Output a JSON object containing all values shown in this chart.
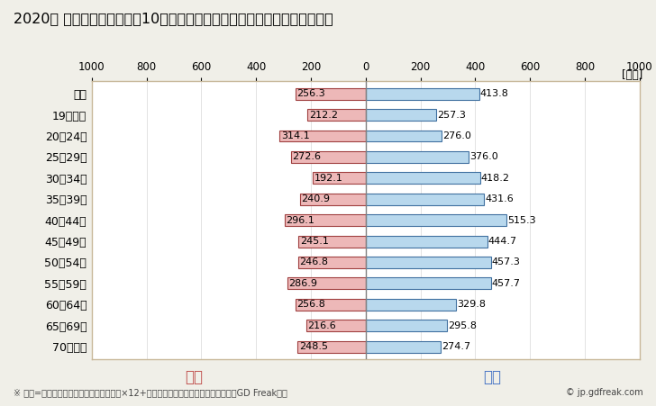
{
  "title": "2020年 民間企業（従業者数10人以上）フルタイム労働者の男女別平均年収",
  "unit_label": "[万円]",
  "categories": [
    "全体",
    "19歳以下",
    "20～24歳",
    "25～29歳",
    "30～34歳",
    "35～39歳",
    "40～44歳",
    "45～49歳",
    "50～54歳",
    "55～59歳",
    "60～64歳",
    "65～69歳",
    "70歳以上"
  ],
  "female_values": [
    256.3,
    212.2,
    314.1,
    272.6,
    192.1,
    240.9,
    296.1,
    245.1,
    246.8,
    286.9,
    256.8,
    216.6,
    248.5
  ],
  "male_values": [
    413.8,
    257.3,
    276.0,
    376.0,
    418.2,
    431.6,
    515.3,
    444.7,
    457.3,
    457.7,
    329.8,
    295.8,
    274.7
  ],
  "female_color": "#EDB8B8",
  "male_color": "#B8D8ED",
  "female_border_color": "#A04040",
  "male_border_color": "#4070A0",
  "female_label": "女性",
  "male_label": "男性",
  "female_label_color": "#C0504D",
  "male_label_color": "#4472C4",
  "xlim": [
    -1000,
    1000
  ],
  "xticks": [
    -1000,
    -800,
    -600,
    -400,
    -200,
    0,
    200,
    400,
    600,
    800,
    1000
  ],
  "xticklabels": [
    "1000",
    "800",
    "600",
    "400",
    "200",
    "0",
    "200",
    "400",
    "600",
    "800",
    "1000"
  ],
  "background_color": "#F0EFE8",
  "plot_background_color": "#FFFFFF",
  "border_color": "#C8B89A",
  "footnote": "※ 年収=「きまって支給する現金給与額」×12+「年間賞与その他特別給与額」としてGD Freak推計",
  "watermark": "© jp.gdfreak.com",
  "title_fontsize": 11.5,
  "category_fontsize": 9,
  "value_fontsize": 8,
  "tick_fontsize": 8.5,
  "label_fontsize": 12,
  "footnote_fontsize": 7,
  "bar_height": 0.55,
  "zero_line_color": "#808080",
  "grid_color": "#D8D8D8"
}
